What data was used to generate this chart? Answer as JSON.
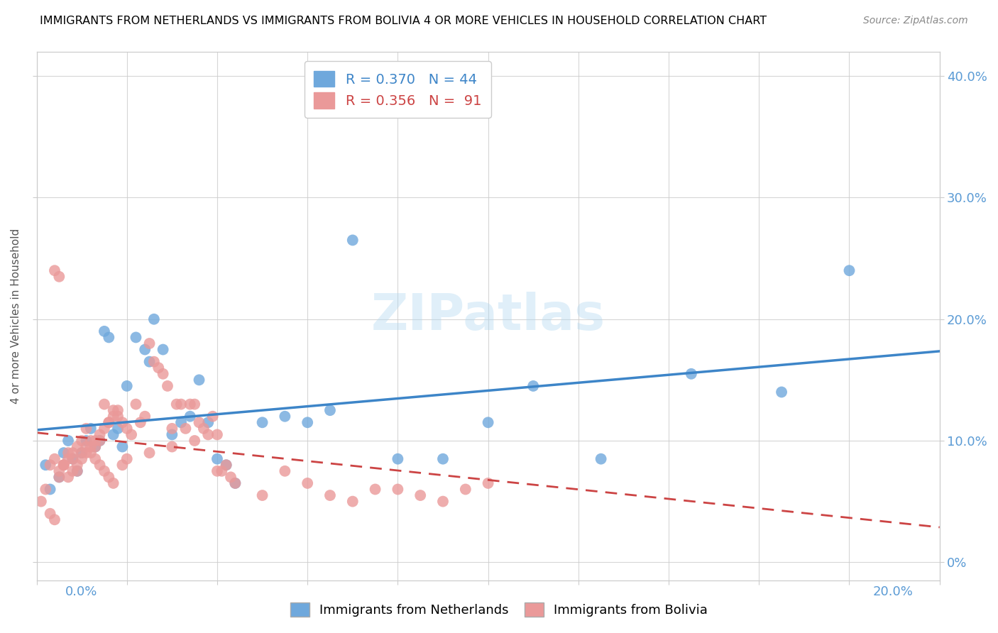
{
  "title": "IMMIGRANTS FROM NETHERLANDS VS IMMIGRANTS FROM BOLIVIA 4 OR MORE VEHICLES IN HOUSEHOLD CORRELATION CHART",
  "source": "Source: ZipAtlas.com",
  "ylabel": "4 or more Vehicles in Household",
  "xlim": [
    0.0,
    0.2
  ],
  "ylim": [
    -0.015,
    0.42
  ],
  "netherlands_R": 0.37,
  "netherlands_N": 44,
  "bolivia_R": 0.356,
  "bolivia_N": 91,
  "netherlands_color": "#6fa8dc",
  "bolivia_color": "#ea9999",
  "netherlands_line_color": "#3d85c8",
  "bolivia_line_color": "#cc4444",
  "watermark": "ZIPatlas",
  "background_color": "#ffffff",
  "grid_color": "#cccccc",
  "title_color": "#000000",
  "axis_label_color": "#5b9bd5",
  "nl_x": [
    0.002,
    0.003,
    0.005,
    0.007,
    0.008,
    0.009,
    0.01,
    0.011,
    0.012,
    0.013,
    0.014,
    0.015,
    0.016,
    0.017,
    0.018,
    0.019,
    0.02,
    0.022,
    0.024,
    0.025,
    0.026,
    0.028,
    0.03,
    0.032,
    0.034,
    0.036,
    0.038,
    0.04,
    0.042,
    0.044,
    0.05,
    0.055,
    0.06,
    0.065,
    0.07,
    0.08,
    0.09,
    0.1,
    0.11,
    0.125,
    0.145,
    0.165,
    0.18,
    0.006
  ],
  "nl_y": [
    0.08,
    0.06,
    0.07,
    0.1,
    0.085,
    0.075,
    0.09,
    0.1,
    0.11,
    0.095,
    0.1,
    0.19,
    0.185,
    0.105,
    0.11,
    0.095,
    0.145,
    0.185,
    0.175,
    0.165,
    0.2,
    0.175,
    0.105,
    0.115,
    0.12,
    0.15,
    0.115,
    0.085,
    0.08,
    0.065,
    0.115,
    0.12,
    0.115,
    0.125,
    0.265,
    0.085,
    0.085,
    0.115,
    0.145,
    0.085,
    0.155,
    0.14,
    0.24,
    0.09
  ],
  "bo_x": [
    0.001,
    0.002,
    0.003,
    0.004,
    0.005,
    0.006,
    0.007,
    0.008,
    0.009,
    0.01,
    0.011,
    0.012,
    0.013,
    0.014,
    0.015,
    0.016,
    0.017,
    0.018,
    0.019,
    0.02,
    0.021,
    0.022,
    0.023,
    0.024,
    0.025,
    0.026,
    0.027,
    0.028,
    0.029,
    0.03,
    0.031,
    0.032,
    0.033,
    0.034,
    0.035,
    0.036,
    0.037,
    0.038,
    0.039,
    0.04,
    0.041,
    0.042,
    0.043,
    0.044,
    0.05,
    0.055,
    0.06,
    0.065,
    0.07,
    0.075,
    0.08,
    0.085,
    0.09,
    0.095,
    0.1,
    0.004,
    0.005,
    0.006,
    0.007,
    0.008,
    0.009,
    0.01,
    0.011,
    0.012,
    0.013,
    0.014,
    0.015,
    0.016,
    0.017,
    0.018,
    0.019,
    0.02,
    0.025,
    0.03,
    0.035,
    0.04,
    0.003,
    0.004,
    0.005,
    0.006,
    0.007,
    0.008,
    0.009,
    0.01,
    0.011,
    0.012,
    0.013,
    0.014,
    0.015,
    0.016,
    0.017
  ],
  "bo_y": [
    0.05,
    0.06,
    0.04,
    0.035,
    0.07,
    0.08,
    0.09,
    0.085,
    0.075,
    0.09,
    0.11,
    0.1,
    0.095,
    0.1,
    0.13,
    0.115,
    0.125,
    0.12,
    0.115,
    0.11,
    0.105,
    0.13,
    0.115,
    0.12,
    0.18,
    0.165,
    0.16,
    0.155,
    0.145,
    0.11,
    0.13,
    0.13,
    0.11,
    0.13,
    0.13,
    0.115,
    0.11,
    0.105,
    0.12,
    0.075,
    0.075,
    0.08,
    0.07,
    0.065,
    0.055,
    0.075,
    0.065,
    0.055,
    0.05,
    0.06,
    0.06,
    0.055,
    0.05,
    0.06,
    0.065,
    0.24,
    0.235,
    0.08,
    0.07,
    0.075,
    0.08,
    0.085,
    0.09,
    0.095,
    0.1,
    0.105,
    0.11,
    0.115,
    0.12,
    0.125,
    0.08,
    0.085,
    0.09,
    0.095,
    0.1,
    0.105,
    0.08,
    0.085,
    0.075,
    0.08,
    0.085,
    0.09,
    0.095,
    0.1,
    0.095,
    0.09,
    0.085,
    0.08,
    0.075,
    0.07,
    0.065
  ]
}
